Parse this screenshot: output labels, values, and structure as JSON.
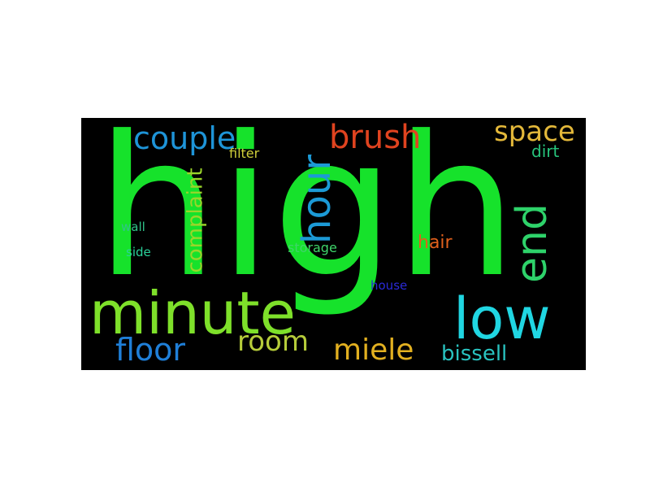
{
  "words": [
    {
      "text": "high",
      "color": "#16e22b"
    },
    {
      "text": "minute",
      "color": "#7ee02a"
    },
    {
      "text": "low",
      "color": "#20d6e2"
    },
    {
      "text": "hour",
      "color": "#1c9ad6"
    },
    {
      "text": "end",
      "color": "#2ed26a"
    },
    {
      "text": "couple",
      "color": "#1e94d8"
    },
    {
      "text": "brush",
      "color": "#e0431f"
    },
    {
      "text": "space",
      "color": "#e3b83a"
    },
    {
      "text": "floor",
      "color": "#1f7fd8"
    },
    {
      "text": "room",
      "color": "#b6cc3a"
    },
    {
      "text": "miele",
      "color": "#e2b020"
    },
    {
      "text": "bissell",
      "color": "#29c3c0"
    },
    {
      "text": "complaint",
      "color": "#9ad52a"
    },
    {
      "text": "hair",
      "color": "#e0601c"
    },
    {
      "text": "dirt",
      "color": "#27c47c"
    },
    {
      "text": "filter",
      "color": "#cfcf3a"
    },
    {
      "text": "wall",
      "color": "#30c48a"
    },
    {
      "text": "side",
      "color": "#2ad19a"
    },
    {
      "text": "storage",
      "color": "#3fd46a"
    },
    {
      "text": "house",
      "color": "#2a2ad8"
    }
  ]
}
